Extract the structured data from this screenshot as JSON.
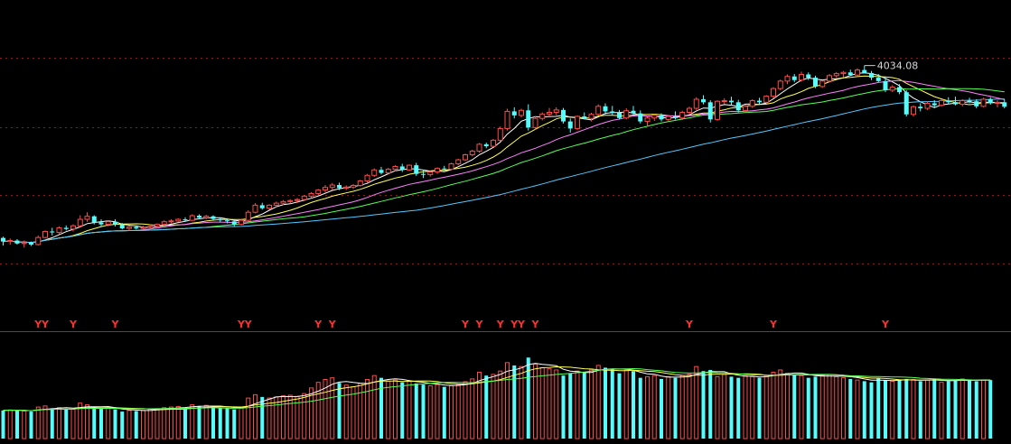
{
  "chart_data": {
    "type": "candlestick",
    "price_label": "4034.08",
    "signal_char": "Y",
    "signal_indices": [
      5,
      6,
      10,
      16,
      34,
      35,
      45,
      47,
      66,
      68,
      71,
      73,
      74,
      76,
      98,
      110,
      126
    ],
    "colors": {
      "background": "#000000",
      "up": "#ff4a4a",
      "down": "#54fcfc",
      "ma_fast": "#ffffff",
      "ma_mid": "#ffff54",
      "ma_slow": "#ff80ff",
      "ma_long": "#54ff54",
      "ma_longest": "#54c8ff",
      "grid": "#8b1a1a",
      "signal": "#ff3030"
    },
    "candles": [
      [
        2918,
        2924,
        2880,
        2900
      ],
      [
        2900,
        2915,
        2885,
        2905
      ],
      [
        2905,
        2912,
        2885,
        2890
      ],
      [
        2890,
        2905,
        2870,
        2895
      ],
      [
        2895,
        2900,
        2878,
        2885
      ],
      [
        2885,
        2930,
        2880,
        2920
      ],
      [
        2920,
        2955,
        2915,
        2950
      ],
      [
        2950,
        2968,
        2930,
        2945
      ],
      [
        2945,
        2975,
        2935,
        2968
      ],
      [
        2968,
        2980,
        2955,
        2962
      ],
      [
        2962,
        2985,
        2950,
        2978
      ],
      [
        2978,
        3030,
        2970,
        3010
      ],
      [
        3010,
        3045,
        2998,
        3025
      ],
      [
        3025,
        3030,
        2985,
        2995
      ],
      [
        2995,
        3010,
        2975,
        2985
      ],
      [
        2985,
        3005,
        2975,
        2998
      ],
      [
        2998,
        3010,
        2975,
        2985
      ],
      [
        2985,
        2992,
        2960,
        2965
      ],
      [
        2965,
        2978,
        2955,
        2972
      ],
      [
        2972,
        2980,
        2960,
        2965
      ],
      [
        2965,
        2978,
        2958,
        2970
      ],
      [
        2970,
        2985,
        2960,
        2975
      ],
      [
        2975,
        2990,
        2965,
        2985
      ],
      [
        2985,
        3005,
        2978,
        2998
      ],
      [
        2998,
        3010,
        2990,
        3002
      ],
      [
        3002,
        3015,
        2995,
        3010
      ],
      [
        3010,
        3020,
        2998,
        3005
      ],
      [
        3005,
        3035,
        3002,
        3028
      ],
      [
        3028,
        3035,
        3010,
        3018
      ],
      [
        3018,
        3032,
        3010,
        3025
      ],
      [
        3025,
        3030,
        3005,
        3012
      ],
      [
        3012,
        3018,
        2995,
        3005
      ],
      [
        3005,
        3015,
        2990,
        3000
      ],
      [
        3000,
        3008,
        2975,
        2985
      ],
      [
        2985,
        3012,
        2980,
        3005
      ],
      [
        3005,
        3055,
        3000,
        3045
      ],
      [
        3045,
        3090,
        3040,
        3080
      ],
      [
        3080,
        3092,
        3058,
        3065
      ],
      [
        3065,
        3085,
        3058,
        3080
      ],
      [
        3080,
        3098,
        3070,
        3090
      ],
      [
        3090,
        3105,
        3080,
        3098
      ],
      [
        3098,
        3110,
        3088,
        3103
      ],
      [
        3103,
        3115,
        3090,
        3108
      ],
      [
        3108,
        3130,
        3100,
        3125
      ],
      [
        3125,
        3145,
        3118,
        3138
      ],
      [
        3138,
        3160,
        3130,
        3155
      ],
      [
        3155,
        3180,
        3140,
        3168
      ],
      [
        3168,
        3190,
        3155,
        3180
      ],
      [
        3180,
        3192,
        3155,
        3165
      ],
      [
        3165,
        3178,
        3155,
        3170
      ],
      [
        3170,
        3185,
        3160,
        3178
      ],
      [
        3178,
        3205,
        3172,
        3200
      ],
      [
        3200,
        3235,
        3192,
        3228
      ],
      [
        3228,
        3262,
        3220,
        3255
      ],
      [
        3255,
        3270,
        3232,
        3240
      ],
      [
        3240,
        3265,
        3235,
        3258
      ],
      [
        3258,
        3278,
        3248,
        3272
      ],
      [
        3272,
        3285,
        3245,
        3255
      ],
      [
        3255,
        3282,
        3250,
        3278
      ],
      [
        3278,
        3290,
        3225,
        3235
      ],
      [
        3235,
        3255,
        3215,
        3232
      ],
      [
        3232,
        3250,
        3222,
        3245
      ],
      [
        3245,
        3268,
        3235,
        3262
      ],
      [
        3262,
        3275,
        3250,
        3258
      ],
      [
        3258,
        3290,
        3252,
        3285
      ],
      [
        3285,
        3310,
        3278,
        3305
      ],
      [
        3305,
        3335,
        3298,
        3330
      ],
      [
        3330,
        3355,
        3322,
        3348
      ],
      [
        3348,
        3388,
        3340,
        3382
      ],
      [
        3382,
        3390,
        3362,
        3372
      ],
      [
        3372,
        3408,
        3368,
        3402
      ],
      [
        3402,
        3470,
        3395,
        3460
      ],
      [
        3460,
        3558,
        3450,
        3545
      ],
      [
        3545,
        3565,
        3510,
        3525
      ],
      [
        3525,
        3558,
        3515,
        3550
      ],
      [
        3550,
        3580,
        3450,
        3465
      ],
      [
        3465,
        3520,
        3455,
        3510
      ],
      [
        3510,
        3540,
        3500,
        3532
      ],
      [
        3532,
        3562,
        3520,
        3540
      ],
      [
        3540,
        3565,
        3525,
        3552
      ],
      [
        3552,
        3562,
        3485,
        3495
      ],
      [
        3495,
        3510,
        3440,
        3460
      ],
      [
        3460,
        3525,
        3452,
        3520
      ],
      [
        3520,
        3540,
        3505,
        3510
      ],
      [
        3510,
        3538,
        3495,
        3530
      ],
      [
        3530,
        3580,
        3525,
        3570
      ],
      [
        3570,
        3585,
        3530,
        3545
      ],
      [
        3545,
        3572,
        3525,
        3538
      ],
      [
        3538,
        3552,
        3505,
        3512
      ],
      [
        3512,
        3560,
        3505,
        3548
      ],
      [
        3548,
        3572,
        3528,
        3535
      ],
      [
        3535,
        3550,
        3485,
        3495
      ],
      [
        3495,
        3522,
        3470,
        3512
      ],
      [
        3512,
        3532,
        3498,
        3525
      ],
      [
        3525,
        3535,
        3495,
        3505
      ],
      [
        3505,
        3528,
        3495,
        3520
      ],
      [
        3520,
        3545,
        3505,
        3512
      ],
      [
        3512,
        3548,
        3502,
        3540
      ],
      [
        3540,
        3568,
        3530,
        3560
      ],
      [
        3560,
        3615,
        3552,
        3605
      ],
      [
        3605,
        3625,
        3580,
        3590
      ],
      [
        3590,
        3600,
        3490,
        3505
      ],
      [
        3505,
        3600,
        3498,
        3595
      ],
      [
        3595,
        3610,
        3580,
        3598
      ],
      [
        3598,
        3618,
        3575,
        3590
      ],
      [
        3590,
        3602,
        3540,
        3550
      ],
      [
        3550,
        3578,
        3540,
        3570
      ],
      [
        3570,
        3605,
        3562,
        3598
      ],
      [
        3598,
        3612,
        3580,
        3590
      ],
      [
        3590,
        3625,
        3582,
        3620
      ],
      [
        3620,
        3665,
        3610,
        3658
      ],
      [
        3658,
        3702,
        3650,
        3695
      ],
      [
        3695,
        3728,
        3680,
        3718
      ],
      [
        3718,
        3730,
        3690,
        3700
      ],
      [
        3700,
        3742,
        3692,
        3728
      ],
      [
        3728,
        3738,
        3700,
        3712
      ],
      [
        3712,
        3722,
        3660,
        3668
      ],
      [
        3668,
        3700,
        3662,
        3695
      ],
      [
        3695,
        3730,
        3688,
        3722
      ],
      [
        3722,
        3740,
        3710,
        3732
      ],
      [
        3732,
        3745,
        3715,
        3738
      ],
      [
        3738,
        3752,
        3720,
        3725
      ],
      [
        3725,
        3758,
        3718,
        3750
      ],
      [
        3750,
        3772,
        3742,
        3735
      ],
      [
        3735,
        3745,
        3700,
        3712
      ],
      [
        3712,
        3730,
        3690,
        3695
      ],
      [
        3695,
        3715,
        3640,
        3650
      ],
      [
        3650,
        3675,
        3640,
        3665
      ],
      [
        3665,
        3680,
        3630,
        3640
      ],
      [
        3640,
        3650,
        3520,
        3530
      ],
      [
        3530,
        3575,
        3520,
        3568
      ],
      [
        3568,
        3585,
        3545,
        3560
      ],
      [
        3560,
        3595,
        3552,
        3585
      ],
      [
        3585,
        3600,
        3560,
        3575
      ],
      [
        3575,
        3605,
        3568,
        3598
      ],
      [
        3598,
        3615,
        3580,
        3590
      ],
      [
        3590,
        3618,
        3575,
        3580
      ],
      [
        3580,
        3605,
        3570,
        3598
      ],
      [
        3598,
        3612,
        3585,
        3595
      ],
      [
        3595,
        3605,
        3560,
        3570
      ],
      [
        3570,
        3612,
        3565,
        3605
      ],
      [
        3605,
        3615,
        3578,
        3585
      ],
      [
        3585,
        3600,
        3565,
        3590
      ],
      [
        3590,
        3605,
        3560,
        3568
      ]
    ],
    "volume": [
      50,
      51,
      50,
      49,
      48,
      56,
      58,
      54,
      55,
      52,
      52,
      63,
      60,
      55,
      53,
      54,
      52,
      48,
      50,
      49,
      50,
      52,
      53,
      55,
      56,
      57,
      55,
      60,
      58,
      59,
      57,
      55,
      54,
      52,
      54,
      72,
      78,
      74,
      72,
      74,
      76,
      77,
      75,
      80,
      90,
      100,
      105,
      108,
      99,
      95,
      92,
      98,
      105,
      112,
      108,
      102,
      104,
      100,
      102,
      98,
      96,
      94,
      96,
      92,
      94,
      96,
      101,
      106,
      118,
      112,
      114,
      120,
      135,
      130,
      128,
      144,
      132,
      126,
      124,
      122,
      112,
      116,
      120,
      118,
      122,
      130,
      126,
      124,
      116,
      122,
      120,
      108,
      110,
      112,
      106,
      110,
      108,
      112,
      114,
      128,
      120,
      122,
      110,
      114,
      110,
      108,
      112,
      110,
      108,
      112,
      118,
      122,
      116,
      114,
      112,
      108,
      110,
      112,
      114,
      110,
      108,
      106,
      104,
      102,
      100,
      108,
      104,
      102,
      104,
      106,
      105,
      102,
      104,
      106,
      100,
      102,
      104,
      106,
      105,
      102,
      104,
      104
    ],
    "price_range": [
      2800,
      4070
    ],
    "volume_max": 170
  }
}
